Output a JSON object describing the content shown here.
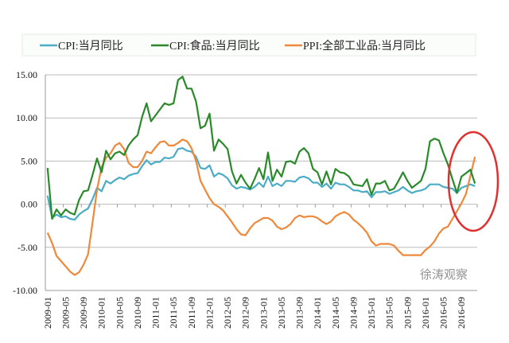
{
  "chart_data": {
    "type": "line",
    "title": "",
    "xlabel": "",
    "ylabel": "",
    "ylim": [
      -10,
      15
    ],
    "yticks": [
      "15.00",
      "10.00",
      "5.00",
      "0.00",
      "-5.00",
      "-10.00"
    ],
    "ytick_values": [
      15,
      10,
      5,
      0,
      -5,
      -10
    ],
    "grid": "horizontal",
    "legend_position": "top",
    "x_start": "2009-01",
    "x_end": "2016-12",
    "xtick_labels": [
      "2009-01",
      "2009-05",
      "2009-09",
      "2010-01",
      "2010-05",
      "2010-09",
      "2011-01",
      "2011-05",
      "2011-09",
      "2012-01",
      "2012-05",
      "2012-09",
      "2013-01",
      "2013-05",
      "2013-09",
      "2014-01",
      "2014-05",
      "2014-09",
      "2015-01",
      "2015-05",
      "2015-09",
      "2016-01",
      "2016-05",
      "2016-09"
    ],
    "series": [
      {
        "name": "CPI:当月同比",
        "color": "#4bacc6",
        "values": [
          1.0,
          -1.6,
          -1.2,
          -1.5,
          -1.4,
          -1.7,
          -1.8,
          -1.2,
          -0.8,
          -0.5,
          0.6,
          1.9,
          1.5,
          2.7,
          2.4,
          2.8,
          3.1,
          2.9,
          3.3,
          3.5,
          3.6,
          4.4,
          5.1,
          4.6,
          4.9,
          4.9,
          5.4,
          5.3,
          5.5,
          6.4,
          6.5,
          6.2,
          6.1,
          5.5,
          4.2,
          4.1,
          4.5,
          3.2,
          3.6,
          3.4,
          3.0,
          2.2,
          1.8,
          2.0,
          1.9,
          1.7,
          2.0,
          2.5,
          2.0,
          3.2,
          2.1,
          2.4,
          2.1,
          2.7,
          2.7,
          2.6,
          3.1,
          3.2,
          3.0,
          2.5,
          2.5,
          2.0,
          2.4,
          1.8,
          2.5,
          2.3,
          2.3,
          2.0,
          1.6,
          1.6,
          1.4,
          1.5,
          0.8,
          1.4,
          1.4,
          1.5,
          1.2,
          1.4,
          1.6,
          2.0,
          1.6,
          1.3,
          1.5,
          1.6,
          1.8,
          2.3,
          2.3,
          2.3,
          2.0,
          1.9,
          1.8,
          1.3,
          1.9,
          2.1,
          2.3,
          2.1
        ]
      },
      {
        "name": "CPI:食品:当月同比",
        "color": "#2a8a2a",
        "values": [
          4.2,
          -1.7,
          -0.6,
          -1.3,
          -0.6,
          -1.0,
          -1.2,
          0.5,
          1.5,
          1.6,
          3.4,
          5.3,
          3.7,
          6.2,
          5.2,
          5.9,
          6.1,
          5.7,
          6.8,
          7.5,
          8.0,
          10.1,
          11.7,
          9.6,
          10.3,
          11.0,
          11.7,
          11.5,
          11.7,
          14.4,
          14.8,
          13.4,
          13.4,
          11.9,
          8.8,
          9.1,
          10.5,
          6.2,
          7.5,
          7.0,
          6.4,
          3.8,
          2.4,
          3.4,
          2.5,
          1.8,
          2.9,
          4.2,
          2.9,
          6.0,
          2.7,
          4.0,
          3.2,
          4.9,
          5.0,
          4.7,
          6.1,
          6.5,
          5.9,
          4.1,
          3.7,
          2.3,
          3.8,
          2.3,
          4.1,
          3.7,
          3.6,
          3.2,
          2.3,
          2.2,
          2.1,
          2.9,
          1.1,
          2.4,
          2.4,
          2.7,
          1.6,
          1.8,
          2.7,
          3.7,
          2.7,
          1.9,
          2.3,
          2.7,
          4.1,
          7.3,
          7.6,
          7.4,
          5.9,
          4.6,
          2.9,
          1.3,
          3.2,
          3.6,
          4.0,
          2.4
        ]
      },
      {
        "name": "PPI:全部工业品:当月同比",
        "color": "#f0883a",
        "values": [
          -3.3,
          -4.5,
          -6.0,
          -6.6,
          -7.2,
          -7.8,
          -8.2,
          -7.9,
          -7.0,
          -5.8,
          -2.1,
          1.7,
          4.3,
          5.4,
          5.9,
          6.8,
          7.1,
          6.4,
          4.8,
          4.3,
          4.3,
          5.0,
          6.1,
          5.9,
          6.6,
          7.2,
          7.3,
          6.8,
          6.8,
          7.1,
          7.5,
          7.3,
          6.5,
          5.0,
          2.7,
          1.7,
          0.7,
          0.0,
          -0.3,
          -0.7,
          -1.4,
          -2.1,
          -2.9,
          -3.5,
          -3.6,
          -2.8,
          -2.2,
          -1.9,
          -1.6,
          -1.6,
          -1.9,
          -2.6,
          -2.9,
          -2.7,
          -2.3,
          -1.6,
          -1.3,
          -1.5,
          -1.4,
          -1.4,
          -1.6,
          -2.0,
          -2.3,
          -2.0,
          -1.4,
          -1.1,
          -0.9,
          -1.2,
          -1.8,
          -2.2,
          -2.7,
          -3.3,
          -4.3,
          -4.8,
          -4.6,
          -4.6,
          -4.6,
          -4.8,
          -5.4,
          -5.9,
          -5.9,
          -5.9,
          -5.9,
          -5.9,
          -5.3,
          -4.9,
          -4.3,
          -3.4,
          -2.8,
          -2.6,
          -1.7,
          -0.8,
          0.1,
          1.2,
          3.3,
          5.5
        ]
      }
    ],
    "annotation": {
      "shape": "ellipse",
      "color": "#e03030",
      "highlights": "2016-09 to 2016-12"
    }
  },
  "watermark": "徐涛观察"
}
